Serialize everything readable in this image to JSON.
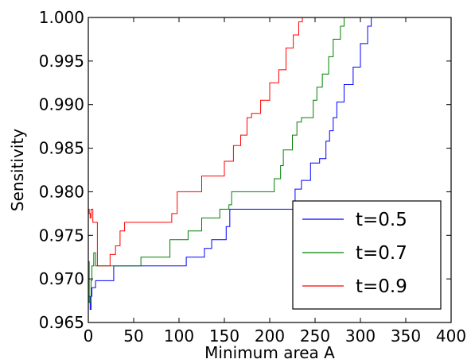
{
  "chart_data": {
    "type": "line",
    "title": "",
    "xlabel": "Minimum area A",
    "ylabel": "Sensitivity",
    "xlim": [
      0,
      400
    ],
    "ylim": [
      0.965,
      1.0
    ],
    "xticks": [
      "0",
      "50",
      "100",
      "150",
      "200",
      "250",
      "300",
      "350",
      "400"
    ],
    "yticks": [
      "0.965",
      "0.970",
      "0.975",
      "0.980",
      "0.985",
      "0.990",
      "0.995",
      "1.000"
    ],
    "grid": false,
    "legend_position": "lower-right",
    "series": [
      {
        "name": "t=0.5",
        "color": "#0000ff",
        "x": [
          0,
          2,
          3,
          4,
          6,
          8,
          10,
          14,
          28,
          88,
          108,
          128,
          136,
          152,
          156,
          218,
          228,
          235,
          245,
          255,
          262,
          266,
          270,
          274,
          282,
          292,
          300,
          308,
          312,
          400
        ],
        "y": [
          0.968,
          0.9665,
          0.968,
          0.969,
          0.969,
          0.9698,
          0.9698,
          0.9698,
          0.9715,
          0.9715,
          0.9725,
          0.9735,
          0.9745,
          0.976,
          0.978,
          0.978,
          0.9803,
          0.9813,
          0.9833,
          0.9838,
          0.9858,
          0.987,
          0.9885,
          0.9903,
          0.9923,
          0.9943,
          0.997,
          0.999,
          1.0,
          1.0
        ]
      },
      {
        "name": "t=0.7",
        "color": "#008000",
        "x": [
          0,
          1,
          2,
          3,
          4,
          6,
          8,
          10,
          58,
          90,
          110,
          125,
          145,
          155,
          158,
          200,
          205,
          212,
          215,
          225,
          230,
          235,
          248,
          252,
          258,
          265,
          270,
          278,
          282,
          400
        ],
        "y": [
          0.972,
          0.9673,
          0.9675,
          0.9698,
          0.9715,
          0.973,
          0.9715,
          0.9715,
          0.9725,
          0.9745,
          0.9755,
          0.977,
          0.978,
          0.9785,
          0.98,
          0.98,
          0.9815,
          0.983,
          0.9848,
          0.9865,
          0.988,
          0.9885,
          0.9905,
          0.992,
          0.9935,
          0.9955,
          0.9975,
          0.999,
          1.0,
          1.0
        ]
      },
      {
        "name": "t=0.9",
        "color": "#ff0000",
        "x": [
          0,
          1,
          2,
          3,
          5,
          8,
          10,
          12,
          24,
          30,
          35,
          40,
          92,
          98,
          125,
          150,
          160,
          168,
          175,
          180,
          190,
          200,
          210,
          218,
          226,
          232,
          236,
          400
        ],
        "y": [
          0.978,
          0.9775,
          0.977,
          0.978,
          0.9765,
          0.9765,
          0.9715,
          0.9715,
          0.9728,
          0.9738,
          0.9755,
          0.9765,
          0.9775,
          0.98,
          0.9818,
          0.9835,
          0.9853,
          0.9865,
          0.9885,
          0.989,
          0.9905,
          0.9925,
          0.994,
          0.9965,
          0.998,
          0.9995,
          1.0,
          1.0
        ]
      }
    ]
  }
}
